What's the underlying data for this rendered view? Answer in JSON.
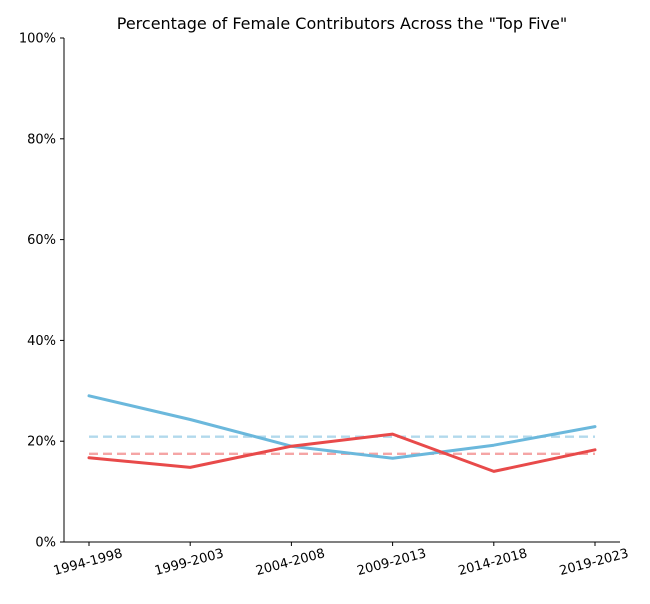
{
  "chart_data": {
    "type": "line",
    "title": "Percentage of Female Contributors Across the \"Top Five\"",
    "xlabel": "",
    "ylabel": "",
    "categories": [
      "1994-1998",
      "1999-2003",
      "2004-2008",
      "2009-2013",
      "2014-2018",
      "2019-2023"
    ],
    "ylim": [
      0,
      1
    ],
    "yticks": [
      0,
      0.2,
      0.4,
      0.6,
      0.8,
      1.0
    ],
    "ytick_labels": [
      "0%",
      "20%",
      "40%",
      "60%",
      "80%",
      "100%"
    ],
    "grid": false,
    "legend": "none",
    "series": [
      {
        "color": "#6bb8dc",
        "style": "solid",
        "values": [
          0.29,
          0.243,
          0.19,
          0.166,
          0.192,
          0.229
        ]
      },
      {
        "color": "#e84a4a",
        "style": "solid",
        "values": [
          0.167,
          0.148,
          0.19,
          0.214,
          0.14,
          0.183
        ]
      },
      {
        "color": "#b2d9ec",
        "style": "dashed",
        "values": [
          0.209,
          0.209,
          0.209,
          0.209,
          0.209,
          0.209
        ]
      },
      {
        "color": "#f5a5a5",
        "style": "dashed",
        "values": [
          0.175,
          0.175,
          0.175,
          0.175,
          0.175,
          0.175
        ]
      }
    ]
  }
}
